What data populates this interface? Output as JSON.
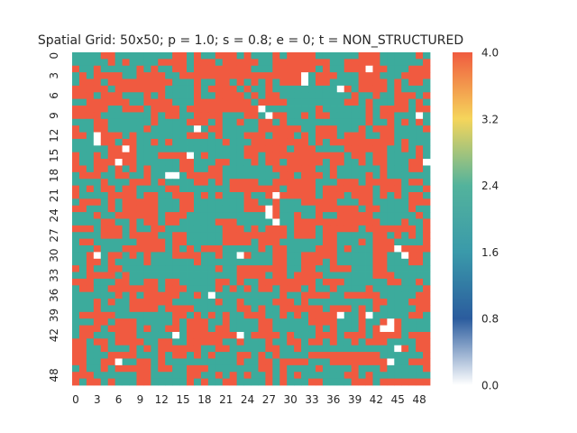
{
  "chart_data": {
    "type": "heatmap",
    "title": "Spatial Grid: 50x50; p = 1.0; s = 0.8; e = 0; t = NON_STRUCTURED",
    "xlabel": "",
    "ylabel": "",
    "rows": 50,
    "cols": 50,
    "x_tick_labels": [
      "0",
      "3",
      "6",
      "9",
      "12",
      "15",
      "18",
      "21",
      "24",
      "27",
      "30",
      "33",
      "36",
      "39",
      "42",
      "45",
      "48"
    ],
    "y_tick_labels": [
      "0",
      "3",
      "6",
      "9",
      "12",
      "15",
      "18",
      "21",
      "24",
      "27",
      "30",
      "33",
      "36",
      "39",
      "42",
      "48"
    ],
    "value_range": [
      0.0,
      4.0
    ],
    "cell_values_present": [
      0,
      2,
      4
    ],
    "colorbar": {
      "tick_labels": [
        "0.0",
        "0.8",
        "1.6",
        "2.4",
        "3.2",
        "4.0"
      ],
      "tick_values": [
        0.0,
        0.8,
        1.6,
        2.4,
        3.2,
        4.0
      ],
      "colors": {
        "0.0": "#ffffff",
        "0.8": "#2b5c9e",
        "1.6": "#3a9aaa",
        "2.4": "#53b39c",
        "3.2": "#f5d55b",
        "4.0": "#f05b3f"
      }
    },
    "cell_colors": {
      "value_4": "#f05a40",
      "value_2": "#3cab9c",
      "value_0": "#ffffff"
    },
    "zero_cells": [
      [
        3,
        32
      ],
      [
        2,
        41
      ],
      [
        4,
        32
      ],
      [
        5,
        37
      ],
      [
        8,
        26
      ],
      [
        9,
        27
      ],
      [
        9,
        48
      ],
      [
        11,
        17
      ],
      [
        12,
        3
      ],
      [
        13,
        3
      ],
      [
        14,
        7
      ],
      [
        15,
        16
      ],
      [
        16,
        6
      ],
      [
        16,
        49
      ],
      [
        18,
        13
      ],
      [
        18,
        14
      ],
      [
        21,
        28
      ],
      [
        23,
        27
      ],
      [
        24,
        27
      ],
      [
        25,
        28
      ],
      [
        29,
        45
      ],
      [
        30,
        3
      ],
      [
        30,
        23
      ],
      [
        30,
        46
      ],
      [
        36,
        19
      ],
      [
        39,
        37
      ],
      [
        39,
        41
      ],
      [
        40,
        44
      ],
      [
        41,
        43
      ],
      [
        41,
        44
      ],
      [
        42,
        23
      ],
      [
        42,
        14
      ],
      [
        44,
        45
      ],
      [
        46,
        6
      ],
      [
        46,
        44
      ]
    ]
  }
}
